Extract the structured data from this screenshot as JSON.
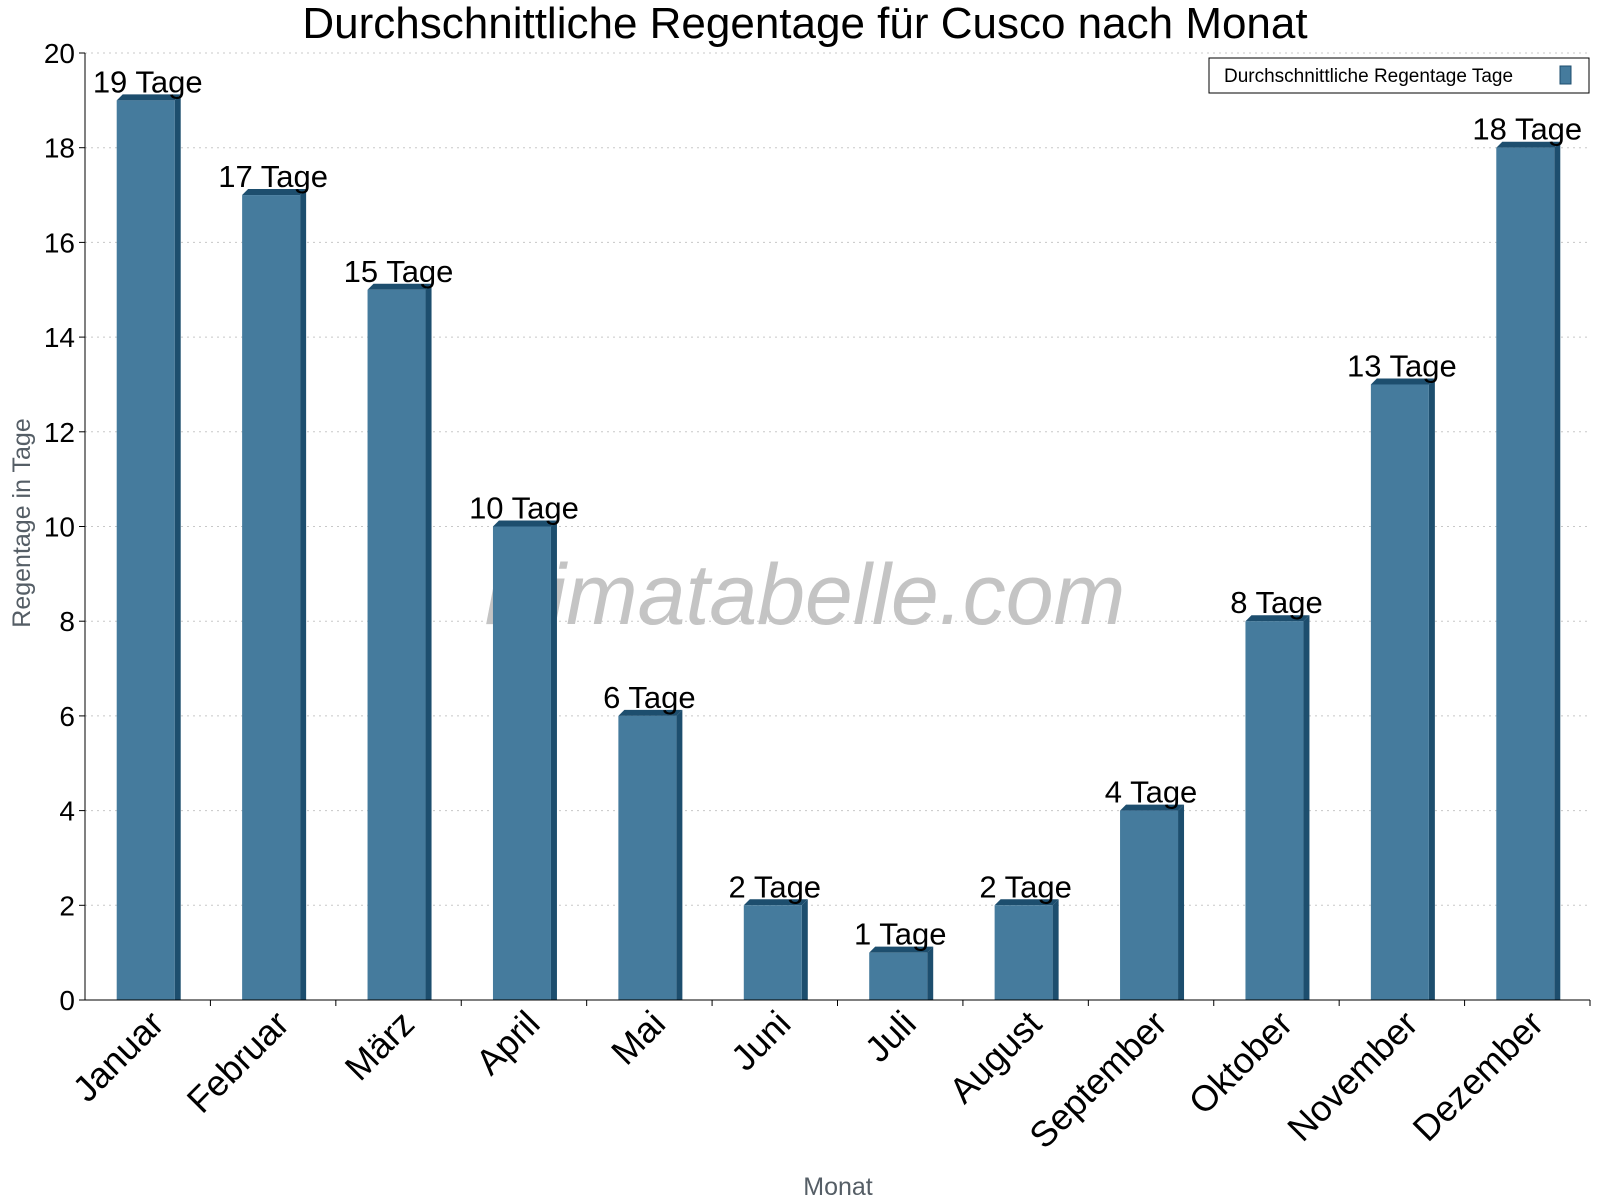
{
  "chart_data": {
    "type": "bar",
    "title": "Durchschnittliche Regentage für Cusco nach Monat",
    "xlabel": "Monat",
    "ylabel": "Regentage in Tage",
    "categories": [
      "Januar",
      "Februar",
      "März",
      "April",
      "Mai",
      "Juni",
      "Juli",
      "August",
      "September",
      "Oktober",
      "November",
      "Dezember"
    ],
    "series": [
      {
        "name": "Durchschnittliche Regentage Tage",
        "values": [
          19,
          17,
          15,
          10,
          6,
          2,
          1,
          2,
          4,
          8,
          13,
          18
        ],
        "color": "#457b9d",
        "shade_color": "#1d4e6e"
      }
    ],
    "data_labels": [
      "19 Tage",
      "17 Tage",
      "15 Tage",
      "10 Tage",
      "6 Tage",
      "2 Tage",
      "1 Tage",
      "2 Tage",
      "4 Tage",
      "8 Tage",
      "13 Tage",
      "18 Tage"
    ],
    "ylim": [
      0,
      20
    ],
    "yticks": [
      0,
      2,
      4,
      6,
      8,
      10,
      12,
      14,
      16,
      18,
      20
    ],
    "grid": true,
    "legend_position": "top-right"
  },
  "watermark": "klimatabelle.com"
}
